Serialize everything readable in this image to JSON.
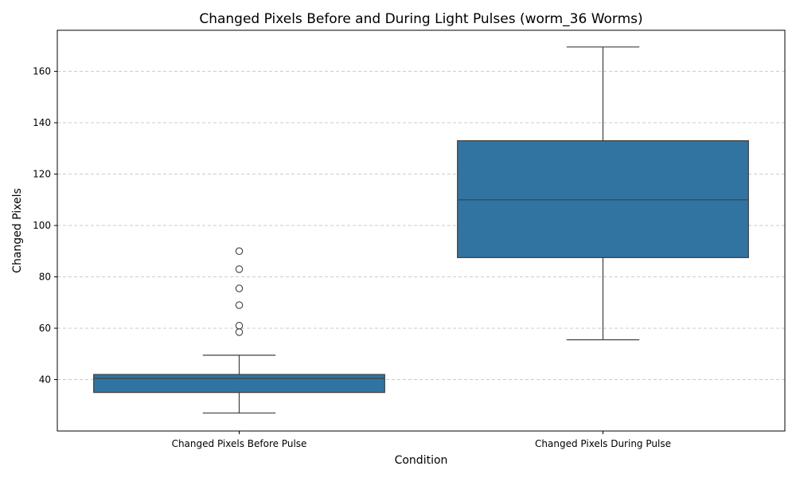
{
  "chart_data": {
    "type": "box",
    "title": "Changed Pixels Before and During Light Pulses (worm_36 Worms)",
    "xlabel": "Condition",
    "ylabel": "Changed Pixels",
    "ylim": [
      20,
      176
    ],
    "yticks": [
      40,
      60,
      80,
      100,
      120,
      140,
      160
    ],
    "grid": "y-dashed",
    "color": "#3274a1",
    "categories": [
      "Changed Pixels Before Pulse",
      "Changed Pixels During Pulse"
    ],
    "boxes": [
      {
        "category": "Changed Pixels Before Pulse",
        "whisker_low": 27,
        "q1": 35,
        "median": 40.5,
        "q3": 42,
        "whisker_high": 49.5,
        "outliers": [
          58.5,
          61,
          69,
          75.5,
          83,
          90
        ]
      },
      {
        "category": "Changed Pixels During Pulse",
        "whisker_low": 55.5,
        "q1": 87.5,
        "median": 110,
        "q3": 133,
        "whisker_high": 169.5,
        "outliers": []
      }
    ]
  }
}
